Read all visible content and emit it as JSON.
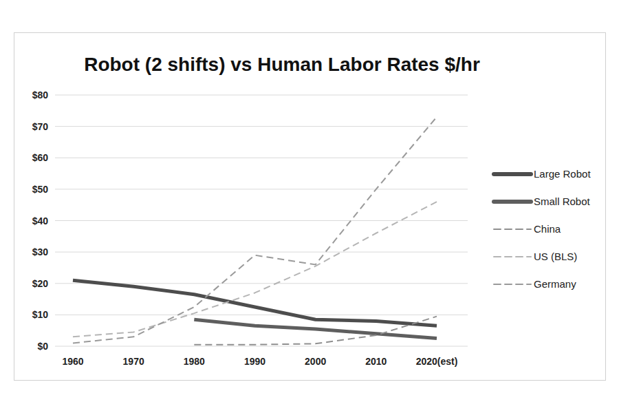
{
  "chart_data": {
    "type": "line",
    "title": "Robot (2 shifts) vs Human Labor Rates $/hr",
    "categories": [
      "1960",
      "1970",
      "1980",
      "1990",
      "2000",
      "2010",
      "2020(est)"
    ],
    "series": [
      {
        "name": "Large Robot",
        "color": "#4d4d4d",
        "line_style": "solid",
        "values": [
          21,
          19,
          16.5,
          12.5,
          8.5,
          8,
          6.5
        ]
      },
      {
        "name": "Small Robot",
        "color": "#5e5e5e",
        "line_style": "solid",
        "values": [
          null,
          null,
          8.5,
          6.5,
          5.5,
          4,
          2.5
        ]
      },
      {
        "name": "China",
        "color": "#8f8f8f",
        "line_style": "dashed",
        "values": [
          null,
          null,
          0.5,
          0.5,
          0.8,
          3.5,
          9.5
        ]
      },
      {
        "name": "US (BLS)",
        "color": "#b5b5b5",
        "line_style": "dashed",
        "values": [
          3,
          4.5,
          10.5,
          17,
          25.5,
          36,
          46
        ]
      },
      {
        "name": "Germany",
        "color": "#9a9a9a",
        "line_style": "dashed",
        "values": [
          1,
          3,
          12.5,
          29,
          26,
          50,
          73
        ]
      }
    ],
    "ylim": [
      0,
      80
    ],
    "yticks": [
      {
        "value": 0,
        "label": "$0"
      },
      {
        "value": 10,
        "label": "$10"
      },
      {
        "value": 20,
        "label": "$20"
      },
      {
        "value": 30,
        "label": "$30"
      },
      {
        "value": 40,
        "label": "$40"
      },
      {
        "value": 50,
        "label": "$50"
      },
      {
        "value": 60,
        "label": "$60"
      },
      {
        "value": 70,
        "label": "$70"
      },
      {
        "value": 80,
        "label": "$80"
      }
    ],
    "grid": true,
    "legend": "right"
  }
}
